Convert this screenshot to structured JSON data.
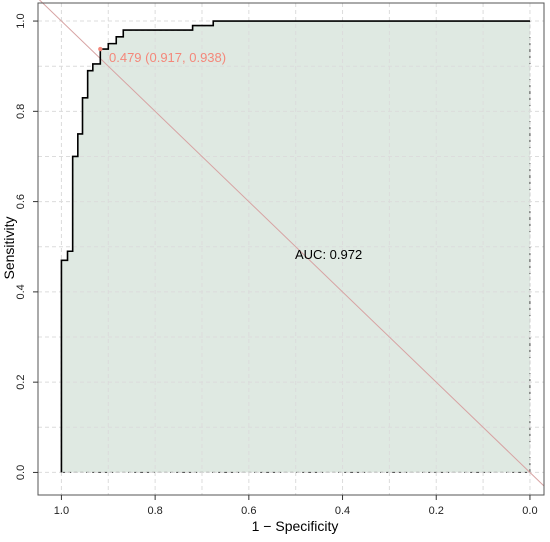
{
  "chart_data": {
    "type": "line",
    "title": "",
    "xlabel": "1 − Specificity",
    "ylabel": "Sensitivity",
    "x_reversed": true,
    "xlim": [
      1.05,
      -0.03
    ],
    "ylim": [
      -0.05,
      1.04
    ],
    "x_ticks": [
      1.0,
      0.8,
      0.6,
      0.4,
      0.2,
      0.0
    ],
    "x_tick_labels": [
      "1.0",
      "0.8",
      "0.6",
      "0.4",
      "0.2",
      "0.0"
    ],
    "y_ticks": [
      0.0,
      0.2,
      0.4,
      0.6,
      0.8,
      1.0
    ],
    "y_tick_labels": [
      "0.0",
      "0.2",
      "0.4",
      "0.6",
      "0.8",
      "1.0"
    ],
    "grid": true,
    "auc_label": "AUC: 0.972",
    "threshold_label": "0.479 (0.917, 0.938)",
    "threshold_point": {
      "x": 0.917,
      "y": 0.938
    },
    "series": [
      {
        "x": [
          1.0,
          1.0,
          0.987,
          0.987,
          0.976,
          0.976,
          0.965,
          0.965,
          0.955,
          0.955,
          0.944,
          0.944,
          0.933,
          0.933,
          0.917,
          0.917,
          0.9,
          0.9,
          0.883,
          0.883,
          0.868,
          0.868,
          0.845,
          0.845,
          0.72,
          0.72,
          0.676,
          0.676,
          0.0
        ],
        "y": [
          0.0,
          0.47,
          0.47,
          0.49,
          0.49,
          0.7,
          0.7,
          0.75,
          0.75,
          0.83,
          0.83,
          0.89,
          0.89,
          0.905,
          0.905,
          0.938,
          0.938,
          0.95,
          0.95,
          0.965,
          0.965,
          0.98,
          0.98,
          0.98,
          0.98,
          0.99,
          0.99,
          1.0,
          1.0
        ]
      }
    ],
    "colors": {
      "roc_line": "#000000",
      "fill": "#dfe9e2",
      "diagonal": "#d7a3a3",
      "threshold": "#f4877a",
      "grid": "#dcdcdc",
      "frame": "#555555"
    }
  }
}
